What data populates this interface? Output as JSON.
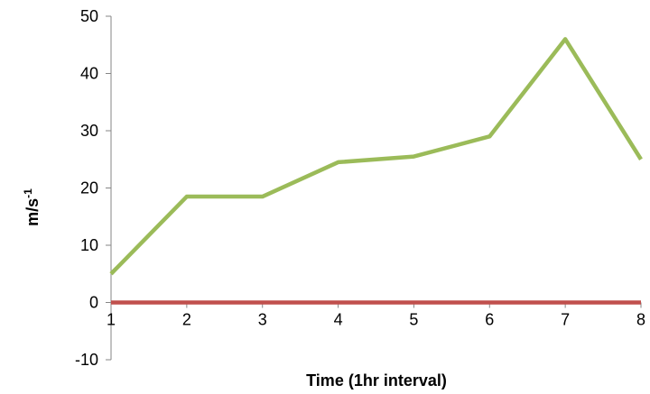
{
  "chart_data": {
    "type": "line",
    "title": "",
    "xlabel": "Time (1hr interval)",
    "ylabel_main": "m/s",
    "ylabel_sup": "-1",
    "categories": [
      "1",
      "2",
      "3",
      "4",
      "5",
      "6",
      "7",
      "8"
    ],
    "ylim": [
      -10,
      50
    ],
    "yticks": [
      "-10",
      "0",
      "10",
      "20",
      "30",
      "40",
      "50"
    ],
    "grid": false,
    "legend": "none",
    "series": [
      {
        "color": "#9BBB59",
        "values": [
          5,
          18.5,
          18.5,
          24.5,
          25.5,
          29,
          46,
          25
        ]
      },
      {
        "color": "#C0504D",
        "values": [
          0,
          0,
          0,
          0,
          0,
          0,
          0,
          0
        ]
      }
    ]
  }
}
